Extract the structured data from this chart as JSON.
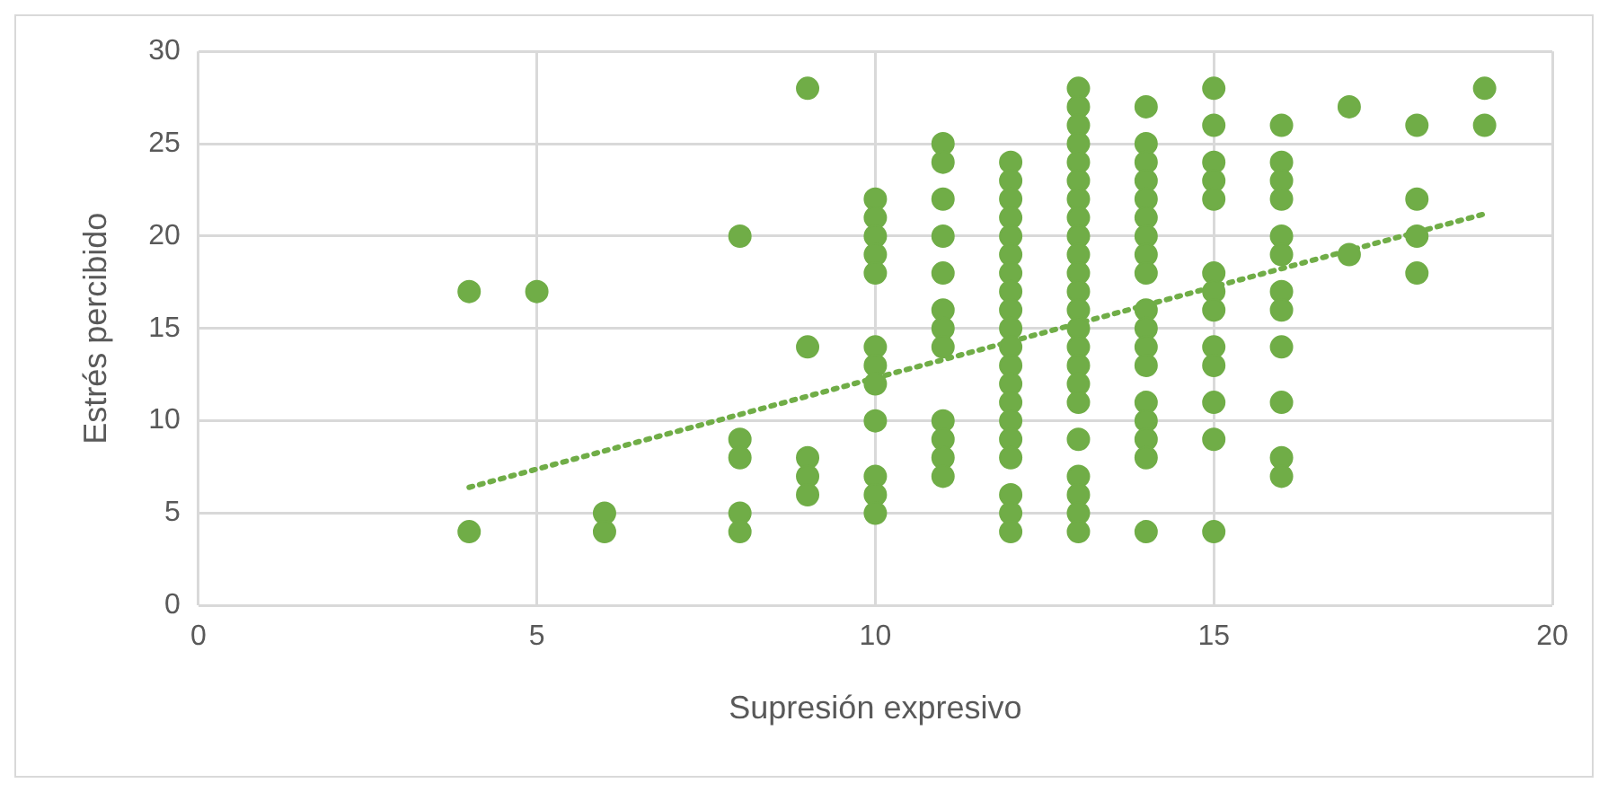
{
  "chart_data": {
    "type": "scatter",
    "xlabel": "Supresión expresivo",
    "ylabel": "Estrés percibido",
    "xlim": [
      0,
      20
    ],
    "xticks": [
      0,
      5,
      10,
      15,
      20
    ],
    "ylim": [
      0,
      30
    ],
    "yticks": [
      0,
      5,
      10,
      15,
      20,
      25,
      30
    ],
    "grid": true,
    "legend": false,
    "marker": "circle",
    "series": [
      {
        "color": "#70ad47",
        "x": [
          4,
          4,
          5,
          6,
          6,
          8,
          8,
          8,
          8,
          8,
          9,
          9,
          9,
          9,
          9,
          10,
          10,
          10,
          10,
          10,
          10,
          10,
          10,
          10,
          10,
          10,
          10,
          11,
          11,
          11,
          11,
          11,
          11,
          11,
          11,
          11,
          11,
          11,
          11,
          12,
          12,
          12,
          12,
          12,
          12,
          12,
          12,
          12,
          12,
          12,
          12,
          12,
          12,
          12,
          12,
          12,
          12,
          12,
          12,
          13,
          13,
          13,
          13,
          13,
          13,
          13,
          13,
          13,
          13,
          13,
          13,
          13,
          13,
          13,
          13,
          13,
          13,
          13,
          13,
          13,
          13,
          13,
          14,
          14,
          14,
          14,
          14,
          14,
          14,
          14,
          14,
          14,
          14,
          14,
          14,
          14,
          14,
          14,
          14,
          14,
          15,
          15,
          15,
          15,
          15,
          15,
          15,
          15,
          15,
          15,
          15,
          15,
          15,
          16,
          16,
          16,
          16,
          16,
          16,
          16,
          16,
          16,
          16,
          16,
          16,
          17,
          17,
          18,
          18,
          18,
          18,
          19,
          19
        ],
        "values": [
          17,
          4,
          17,
          5,
          4,
          20,
          9,
          8,
          5,
          4,
          28,
          14,
          8,
          7,
          6,
          22,
          21,
          20,
          19,
          18,
          14,
          13,
          12,
          10,
          7,
          6,
          5,
          25,
          24,
          22,
          20,
          18,
          16,
          15,
          14,
          10,
          9,
          8,
          7,
          24,
          23,
          22,
          21,
          20,
          19,
          18,
          17,
          16,
          15,
          14,
          13,
          12,
          11,
          10,
          9,
          8,
          6,
          5,
          4,
          28,
          27,
          26,
          25,
          24,
          23,
          22,
          21,
          20,
          19,
          18,
          17,
          16,
          15,
          14,
          13,
          12,
          11,
          9,
          7,
          6,
          5,
          4,
          27,
          25,
          24,
          23,
          22,
          21,
          20,
          19,
          18,
          16,
          15,
          14,
          13,
          11,
          10,
          9,
          8,
          4,
          28,
          26,
          24,
          23,
          22,
          18,
          17,
          16,
          14,
          13,
          11,
          9,
          4,
          26,
          24,
          23,
          22,
          20,
          19,
          17,
          16,
          14,
          11,
          8,
          7,
          27,
          19,
          26,
          22,
          20,
          18,
          28,
          26
        ]
      },
      {
        "type": "line",
        "color": "#70ad47",
        "line_style": "dotted",
        "marker": "none",
        "x": [
          4,
          19
        ],
        "values": [
          6.4,
          21.2
        ]
      }
    ]
  }
}
